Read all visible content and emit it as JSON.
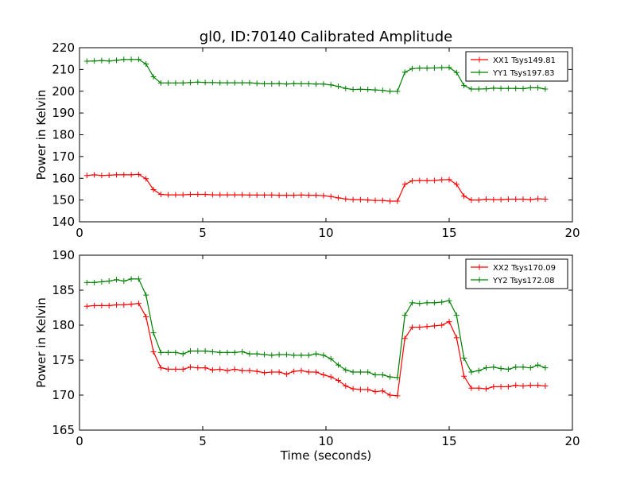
{
  "title": "gl0, ID:70140 Calibrated Amplitude",
  "chart_data": [
    {
      "type": "line",
      "title": "gl0, ID:70140 Calibrated Amplitude",
      "xlabel": "",
      "ylabel": "Power in Kelvin",
      "xlim": [
        0,
        20
      ],
      "ylim": [
        140,
        220
      ],
      "xticks": [
        "0",
        "5",
        "10",
        "15",
        "20"
      ],
      "yticks": [
        "140",
        "150",
        "160",
        "170",
        "180",
        "190",
        "200",
        "210",
        "220"
      ],
      "grid": false,
      "legend_position": "top-right",
      "x": [
        0.3,
        0.6,
        0.9,
        1.2,
        1.5,
        1.8,
        2.1,
        2.4,
        2.7,
        3.0,
        3.3,
        3.6,
        3.9,
        4.2,
        4.5,
        4.8,
        5.1,
        5.4,
        5.7,
        6.0,
        6.3,
        6.6,
        6.9,
        7.2,
        7.5,
        7.8,
        8.1,
        8.4,
        8.7,
        9.0,
        9.3,
        9.6,
        9.9,
        10.2,
        10.5,
        10.8,
        11.1,
        11.4,
        11.7,
        12.0,
        12.3,
        12.6,
        12.9,
        13.2,
        13.5,
        13.8,
        14.1,
        14.4,
        14.7,
        15.0,
        15.3,
        15.6,
        15.9,
        16.2,
        16.5,
        16.8,
        17.1,
        17.4,
        17.7,
        18.0,
        18.3,
        18.6,
        18.9
      ],
      "series": [
        {
          "name": "XX1 Tsys149.81",
          "color": "#ff0000",
          "values": [
            161.3,
            161.6,
            161.3,
            161.4,
            161.6,
            161.6,
            161.6,
            161.8,
            159.8,
            154.8,
            152.6,
            152.4,
            152.4,
            152.4,
            152.6,
            152.6,
            152.6,
            152.4,
            152.4,
            152.4,
            152.4,
            152.4,
            152.3,
            152.3,
            152.3,
            152.3,
            152.2,
            152.2,
            152.2,
            152.3,
            152.2,
            152.2,
            152.0,
            151.6,
            151.0,
            150.5,
            150.2,
            150.2,
            150.0,
            149.8,
            149.8,
            149.5,
            149.5,
            157.2,
            158.8,
            159.0,
            158.9,
            159.0,
            159.3,
            159.4,
            157.2,
            151.8,
            150.0,
            150.0,
            150.4,
            150.2,
            150.2,
            150.4,
            150.4,
            150.4,
            150.2,
            150.6,
            150.4
          ]
        },
        {
          "name": "YY1 Tsys197.83",
          "color": "#008000",
          "values": [
            213.8,
            213.9,
            214.1,
            213.9,
            214.2,
            214.6,
            214.6,
            214.6,
            212.5,
            206.6,
            203.8,
            203.8,
            203.8,
            203.8,
            204.0,
            204.2,
            204.0,
            204.0,
            203.9,
            203.9,
            203.9,
            203.9,
            203.9,
            203.6,
            203.4,
            203.4,
            203.5,
            203.3,
            203.5,
            203.4,
            203.4,
            203.3,
            203.3,
            202.9,
            202.2,
            201.3,
            200.8,
            200.9,
            200.8,
            200.6,
            200.4,
            200.0,
            199.9,
            208.7,
            210.4,
            210.6,
            210.6,
            210.7,
            210.8,
            210.9,
            208.6,
            202.6,
            201.0,
            201.0,
            201.1,
            201.4,
            201.3,
            201.3,
            201.3,
            201.2,
            201.6,
            201.6,
            201.0
          ]
        }
      ]
    },
    {
      "type": "line",
      "title": "",
      "xlabel": "Time (seconds)",
      "ylabel": "Power in Kelvin",
      "xlim": [
        0,
        20
      ],
      "ylim": [
        165,
        190
      ],
      "xticks": [
        "0",
        "5",
        "10",
        "15",
        "20"
      ],
      "yticks": [
        "165",
        "170",
        "175",
        "180",
        "185",
        "190"
      ],
      "grid": false,
      "legend_position": "top-right",
      "x": [
        0.3,
        0.6,
        0.9,
        1.2,
        1.5,
        1.8,
        2.1,
        2.4,
        2.7,
        3.0,
        3.3,
        3.6,
        3.9,
        4.2,
        4.5,
        4.8,
        5.1,
        5.4,
        5.7,
        6.0,
        6.3,
        6.6,
        6.9,
        7.2,
        7.5,
        7.8,
        8.1,
        8.4,
        8.7,
        9.0,
        9.3,
        9.6,
        9.9,
        10.2,
        10.5,
        10.8,
        11.1,
        11.4,
        11.7,
        12.0,
        12.3,
        12.6,
        12.9,
        13.2,
        13.5,
        13.8,
        14.1,
        14.4,
        14.7,
        15.0,
        15.3,
        15.6,
        15.9,
        16.2,
        16.5,
        16.8,
        17.1,
        17.4,
        17.7,
        18.0,
        18.3,
        18.6,
        18.9
      ],
      "series": [
        {
          "name": "XX2 Tsys170.09",
          "color": "#ff0000",
          "values": [
            182.7,
            182.8,
            182.8,
            182.8,
            182.9,
            182.9,
            183.0,
            183.1,
            181.2,
            176.2,
            173.9,
            173.7,
            173.7,
            173.7,
            174.0,
            173.9,
            173.9,
            173.6,
            173.7,
            173.5,
            173.7,
            173.5,
            173.5,
            173.4,
            173.2,
            173.3,
            173.3,
            173.0,
            173.4,
            173.5,
            173.3,
            173.3,
            172.9,
            172.6,
            172.1,
            171.3,
            170.9,
            170.8,
            170.8,
            170.5,
            170.6,
            170.0,
            169.9,
            178.1,
            179.7,
            179.7,
            179.8,
            179.9,
            180.0,
            180.5,
            178.2,
            172.7,
            171.0,
            171.0,
            170.9,
            171.2,
            171.2,
            171.2,
            171.4,
            171.3,
            171.4,
            171.4,
            171.3
          ]
        },
        {
          "name": "YY2 Tsys172.08",
          "color": "#008000",
          "values": [
            186.1,
            186.1,
            186.2,
            186.3,
            186.5,
            186.3,
            186.6,
            186.6,
            184.3,
            178.9,
            176.1,
            176.1,
            176.1,
            175.9,
            176.3,
            176.3,
            176.3,
            176.2,
            176.1,
            176.1,
            176.1,
            176.2,
            175.9,
            175.9,
            175.8,
            175.7,
            175.8,
            175.8,
            175.7,
            175.7,
            175.7,
            175.9,
            175.7,
            175.2,
            174.3,
            173.6,
            173.3,
            173.3,
            173.3,
            172.9,
            172.9,
            172.6,
            172.5,
            181.4,
            183.2,
            183.1,
            183.2,
            183.2,
            183.3,
            183.5,
            181.4,
            175.3,
            173.3,
            173.5,
            173.9,
            174.0,
            173.8,
            173.7,
            174.0,
            174.0,
            173.9,
            174.3,
            173.9
          ]
        }
      ]
    }
  ]
}
